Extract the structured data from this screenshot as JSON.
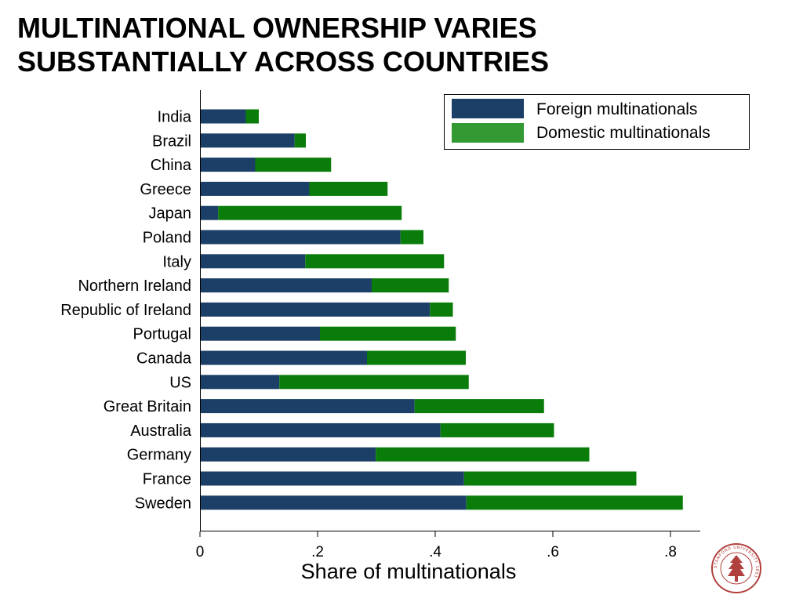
{
  "slide": {
    "title_line1": "MULTINATIONAL OWNERSHIP VARIES",
    "title_line2": "SUBSTANTIALLY ACROSS COUNTRIES"
  },
  "logo": {
    "name": "university-seal",
    "text": "STANFORD UNIVERSITY 1891"
  },
  "chart_data": {
    "type": "bar",
    "orientation": "horizontal",
    "stacked": true,
    "categories": [
      "India",
      "Brazil",
      "China",
      "Greece",
      "Japan",
      "Poland",
      "Italy",
      "Northern Ireland",
      "Republic of Ireland",
      "Portugal",
      "Canada",
      "US",
      "Great Britain",
      "Australia",
      "Germany",
      "France",
      "Sweden"
    ],
    "series": [
      {
        "name": "Foreign multinationals",
        "color": "#1b3f66",
        "values": [
          0.078,
          0.161,
          0.094,
          0.186,
          0.031,
          0.341,
          0.179,
          0.292,
          0.391,
          0.204,
          0.284,
          0.135,
          0.365,
          0.409,
          0.299,
          0.449,
          0.453
        ]
      },
      {
        "name": "Domestic multinationals",
        "color": "#0a7c0a",
        "values": [
          0.022,
          0.019,
          0.129,
          0.133,
          0.312,
          0.039,
          0.236,
          0.131,
          0.039,
          0.231,
          0.168,
          0.322,
          0.22,
          0.193,
          0.363,
          0.293,
          0.368
        ]
      }
    ],
    "xlabel": "Share of multinationals",
    "ylabel": "",
    "xlim": [
      0,
      0.85
    ],
    "xticks": [
      0,
      0.2,
      0.4,
      0.6,
      0.8
    ],
    "xtick_labels": [
      "0",
      ".2",
      ".4",
      ".6",
      ".8"
    ],
    "grid": false,
    "legend": {
      "position": "top-right",
      "entries": [
        "Foreign multinationals",
        "Domestic multinationals"
      ],
      "swatch_colors": [
        "#1b3f66",
        "#339933"
      ]
    }
  }
}
